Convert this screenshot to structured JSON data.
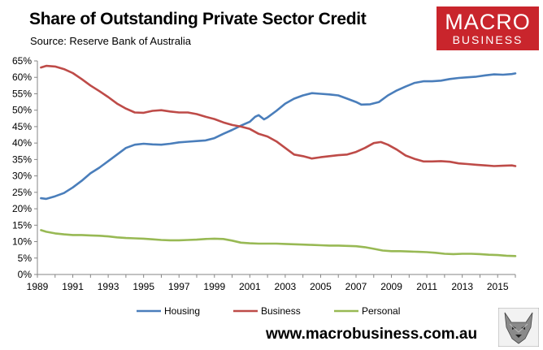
{
  "title": "Share of Outstanding Private Sector Credit",
  "subtitle": "Source: Reserve Bank of Australia",
  "logo": {
    "line1": "MACRO",
    "line2": "BUSINESS",
    "color": "#c9252c",
    "icon": "wolf-head-icon"
  },
  "footer": {
    "url": "www.macrobusiness.com.au"
  },
  "chart_data": {
    "type": "line",
    "title": "Share of Outstanding Private Sector Credit",
    "xlabel": "",
    "ylabel": "",
    "xlim": [
      1989,
      2016
    ],
    "ylim": [
      0,
      65
    ],
    "x_ticks": [
      "1989",
      "1991",
      "1993",
      "1995",
      "1997",
      "1999",
      "2001",
      "2003",
      "2005",
      "2007",
      "2009",
      "2011",
      "2013",
      "2015"
    ],
    "y_ticks": [
      "0%",
      "5%",
      "10%",
      "15%",
      "20%",
      "25%",
      "30%",
      "35%",
      "40%",
      "45%",
      "50%",
      "55%",
      "60%",
      "65%"
    ],
    "grid": false,
    "legend_position": "bottom",
    "series": [
      {
        "name": "Housing",
        "color": "#4a7ebb",
        "points": [
          [
            1989.2,
            23.2
          ],
          [
            1989.5,
            23.0
          ],
          [
            1990.0,
            23.8
          ],
          [
            1990.5,
            24.8
          ],
          [
            1991.0,
            26.5
          ],
          [
            1991.5,
            28.5
          ],
          [
            1992.0,
            30.8
          ],
          [
            1992.5,
            32.5
          ],
          [
            1993.0,
            34.5
          ],
          [
            1993.5,
            36.5
          ],
          [
            1994.0,
            38.5
          ],
          [
            1994.5,
            39.5
          ],
          [
            1995.0,
            39.8
          ],
          [
            1995.5,
            39.6
          ],
          [
            1996.0,
            39.5
          ],
          [
            1996.5,
            39.8
          ],
          [
            1997.0,
            40.2
          ],
          [
            1997.5,
            40.4
          ],
          [
            1998.0,
            40.6
          ],
          [
            1998.5,
            40.8
          ],
          [
            1999.0,
            41.5
          ],
          [
            1999.5,
            42.8
          ],
          [
            2000.0,
            44.0
          ],
          [
            2000.5,
            45.3
          ],
          [
            2001.0,
            46.5
          ],
          [
            2001.3,
            48.0
          ],
          [
            2001.5,
            48.5
          ],
          [
            2001.8,
            47.2
          ],
          [
            2002.0,
            47.8
          ],
          [
            2002.5,
            49.8
          ],
          [
            2003.0,
            52.0
          ],
          [
            2003.5,
            53.5
          ],
          [
            2004.0,
            54.5
          ],
          [
            2004.5,
            55.2
          ],
          [
            2005.0,
            55.0
          ],
          [
            2005.5,
            54.8
          ],
          [
            2006.0,
            54.5
          ],
          [
            2006.5,
            53.5
          ],
          [
            2007.0,
            52.5
          ],
          [
            2007.3,
            51.7
          ],
          [
            2007.8,
            51.8
          ],
          [
            2008.3,
            52.5
          ],
          [
            2008.8,
            54.5
          ],
          [
            2009.3,
            56.0
          ],
          [
            2009.8,
            57.2
          ],
          [
            2010.3,
            58.3
          ],
          [
            2010.8,
            58.8
          ],
          [
            2011.3,
            58.8
          ],
          [
            2011.8,
            59.0
          ],
          [
            2012.3,
            59.5
          ],
          [
            2012.8,
            59.8
          ],
          [
            2013.3,
            60.0
          ],
          [
            2013.8,
            60.2
          ],
          [
            2014.3,
            60.6
          ],
          [
            2014.8,
            60.9
          ],
          [
            2015.3,
            60.8
          ],
          [
            2015.8,
            61.0
          ],
          [
            2016.0,
            61.2
          ]
        ]
      },
      {
        "name": "Business",
        "color": "#be4b48",
        "points": [
          [
            1989.2,
            63.0
          ],
          [
            1989.5,
            63.5
          ],
          [
            1990.0,
            63.3
          ],
          [
            1990.5,
            62.5
          ],
          [
            1991.0,
            61.3
          ],
          [
            1991.5,
            59.5
          ],
          [
            1992.0,
            57.5
          ],
          [
            1992.5,
            55.8
          ],
          [
            1993.0,
            54.0
          ],
          [
            1993.5,
            52.0
          ],
          [
            1994.0,
            50.5
          ],
          [
            1994.5,
            49.3
          ],
          [
            1995.0,
            49.2
          ],
          [
            1995.5,
            49.8
          ],
          [
            1996.0,
            50.0
          ],
          [
            1996.5,
            49.6
          ],
          [
            1997.0,
            49.3
          ],
          [
            1997.5,
            49.3
          ],
          [
            1998.0,
            48.8
          ],
          [
            1998.5,
            48.0
          ],
          [
            1999.0,
            47.3
          ],
          [
            1999.5,
            46.3
          ],
          [
            2000.0,
            45.5
          ],
          [
            2000.5,
            45.0
          ],
          [
            2001.0,
            44.3
          ],
          [
            2001.5,
            42.8
          ],
          [
            2002.0,
            42.0
          ],
          [
            2002.5,
            40.5
          ],
          [
            2003.0,
            38.5
          ],
          [
            2003.5,
            36.5
          ],
          [
            2004.0,
            36.0
          ],
          [
            2004.5,
            35.3
          ],
          [
            2005.0,
            35.7
          ],
          [
            2005.5,
            36.0
          ],
          [
            2006.0,
            36.3
          ],
          [
            2006.5,
            36.5
          ],
          [
            2007.0,
            37.3
          ],
          [
            2007.5,
            38.5
          ],
          [
            2008.0,
            40.0
          ],
          [
            2008.4,
            40.3
          ],
          [
            2008.8,
            39.5
          ],
          [
            2009.3,
            38.0
          ],
          [
            2009.8,
            36.2
          ],
          [
            2010.3,
            35.2
          ],
          [
            2010.8,
            34.4
          ],
          [
            2011.3,
            34.4
          ],
          [
            2011.8,
            34.5
          ],
          [
            2012.3,
            34.3
          ],
          [
            2012.8,
            33.8
          ],
          [
            2013.3,
            33.6
          ],
          [
            2013.8,
            33.4
          ],
          [
            2014.3,
            33.2
          ],
          [
            2014.8,
            33.0
          ],
          [
            2015.3,
            33.1
          ],
          [
            2015.8,
            33.2
          ],
          [
            2016.0,
            33.0
          ]
        ]
      },
      {
        "name": "Personal",
        "color": "#98b954",
        "points": [
          [
            1989.2,
            13.5
          ],
          [
            1989.5,
            13.0
          ],
          [
            1990.0,
            12.5
          ],
          [
            1990.5,
            12.2
          ],
          [
            1991.0,
            12.0
          ],
          [
            1991.5,
            12.0
          ],
          [
            1992.0,
            11.9
          ],
          [
            1992.5,
            11.8
          ],
          [
            1993.0,
            11.6
          ],
          [
            1993.5,
            11.3
          ],
          [
            1994.0,
            11.1
          ],
          [
            1994.5,
            11.0
          ],
          [
            1995.0,
            10.9
          ],
          [
            1995.5,
            10.7
          ],
          [
            1996.0,
            10.5
          ],
          [
            1996.5,
            10.4
          ],
          [
            1997.0,
            10.4
          ],
          [
            1997.5,
            10.5
          ],
          [
            1998.0,
            10.6
          ],
          [
            1998.5,
            10.8
          ],
          [
            1999.0,
            10.9
          ],
          [
            1999.5,
            10.8
          ],
          [
            2000.0,
            10.3
          ],
          [
            2000.5,
            9.7
          ],
          [
            2001.0,
            9.5
          ],
          [
            2001.5,
            9.4
          ],
          [
            2002.0,
            9.4
          ],
          [
            2002.5,
            9.4
          ],
          [
            2003.0,
            9.3
          ],
          [
            2003.5,
            9.2
          ],
          [
            2004.0,
            9.1
          ],
          [
            2004.5,
            9.0
          ],
          [
            2005.0,
            8.9
          ],
          [
            2005.5,
            8.8
          ],
          [
            2006.0,
            8.8
          ],
          [
            2006.5,
            8.7
          ],
          [
            2007.0,
            8.6
          ],
          [
            2007.5,
            8.3
          ],
          [
            2008.0,
            7.8
          ],
          [
            2008.5,
            7.3
          ],
          [
            2009.0,
            7.1
          ],
          [
            2009.5,
            7.1
          ],
          [
            2010.0,
            7.0
          ],
          [
            2010.5,
            6.9
          ],
          [
            2011.0,
            6.8
          ],
          [
            2011.5,
            6.6
          ],
          [
            2012.0,
            6.3
          ],
          [
            2012.5,
            6.2
          ],
          [
            2013.0,
            6.3
          ],
          [
            2013.5,
            6.3
          ],
          [
            2014.0,
            6.2
          ],
          [
            2014.5,
            6.0
          ],
          [
            2015.0,
            5.9
          ],
          [
            2015.5,
            5.7
          ],
          [
            2016.0,
            5.6
          ]
        ]
      }
    ]
  }
}
